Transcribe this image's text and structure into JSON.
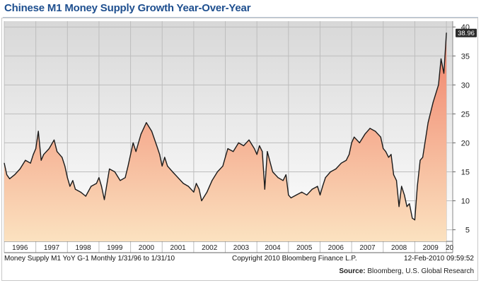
{
  "title": "Chinese M1 Money Supply Growth Year-Over-Year",
  "footer": {
    "series_desc": "Money Supply M1 YoY G-1 Monthly 1/31/96 to 1/31/10",
    "copyright": "Copyright 2010 Bloomberg Finance L.P.",
    "timestamp": "12-Feb-2010 09:59:52"
  },
  "source": {
    "label": "Source:",
    "text": "Bloomberg, U.S. Global Research"
  },
  "colors": {
    "line": "#1a1a1a",
    "fill_top": "#f08068",
    "fill_bottom": "#fbe2c0",
    "plot_top": "#d8d8d8",
    "plot_bottom": "#ffffff",
    "title": "#1e4f8f",
    "grid": "#bdbdbd"
  },
  "chart_data": {
    "type": "area",
    "title": "Chinese M1 Money Supply Growth Year-Over-Year",
    "x_tick_labels": [
      "1996",
      "1997",
      "1998",
      "1999",
      "2000",
      "2001",
      "2002",
      "2003",
      "2004",
      "2005",
      "2006",
      "2007",
      "2008",
      "2009",
      "20"
    ],
    "y_ticks": [
      5,
      10,
      15,
      20,
      25,
      30,
      35,
      40
    ],
    "ylim": [
      3,
      41
    ],
    "xlim": [
      1996.0,
      2010.2
    ],
    "y_axis_side": "right",
    "grid": true,
    "last_value_label": "38.96",
    "series": [
      {
        "values": [
          [
            1996.0,
            16.5
          ],
          [
            1996.08,
            14.5
          ],
          [
            1996.17,
            13.8
          ],
          [
            1996.33,
            14.5
          ],
          [
            1996.5,
            15.5
          ],
          [
            1996.67,
            17.0
          ],
          [
            1996.83,
            16.5
          ],
          [
            1996.92,
            18.0
          ],
          [
            1997.0,
            19.0
          ],
          [
            1997.08,
            22.0
          ],
          [
            1997.17,
            17.0
          ],
          [
            1997.25,
            18.0
          ],
          [
            1997.42,
            19.0
          ],
          [
            1997.58,
            20.5
          ],
          [
            1997.67,
            18.5
          ],
          [
            1997.83,
            17.5
          ],
          [
            1997.92,
            16.0
          ],
          [
            1998.0,
            14.0
          ],
          [
            1998.08,
            12.5
          ],
          [
            1998.17,
            13.5
          ],
          [
            1998.25,
            12.0
          ],
          [
            1998.42,
            11.5
          ],
          [
            1998.58,
            10.8
          ],
          [
            1998.75,
            12.5
          ],
          [
            1998.92,
            13.0
          ],
          [
            1999.0,
            14.0
          ],
          [
            1999.08,
            12.5
          ],
          [
            1999.17,
            10.2
          ],
          [
            1999.33,
            15.5
          ],
          [
            1999.5,
            15.0
          ],
          [
            1999.67,
            13.5
          ],
          [
            1999.83,
            14.0
          ],
          [
            1999.92,
            16.0
          ],
          [
            2000.0,
            18.0
          ],
          [
            2000.08,
            20.0
          ],
          [
            2000.17,
            18.5
          ],
          [
            2000.33,
            21.5
          ],
          [
            2000.5,
            23.5
          ],
          [
            2000.67,
            22.0
          ],
          [
            2000.83,
            19.5
          ],
          [
            2000.92,
            18.0
          ],
          [
            2001.0,
            16.0
          ],
          [
            2001.08,
            17.5
          ],
          [
            2001.17,
            16.0
          ],
          [
            2001.33,
            15.0
          ],
          [
            2001.5,
            14.0
          ],
          [
            2001.67,
            13.0
          ],
          [
            2001.83,
            12.5
          ],
          [
            2002.0,
            11.5
          ],
          [
            2002.08,
            13.0
          ],
          [
            2002.17,
            12.0
          ],
          [
            2002.25,
            10.0
          ],
          [
            2002.42,
            11.5
          ],
          [
            2002.58,
            13.5
          ],
          [
            2002.75,
            15.0
          ],
          [
            2002.92,
            16.0
          ],
          [
            2003.0,
            17.5
          ],
          [
            2003.08,
            19.0
          ],
          [
            2003.25,
            18.5
          ],
          [
            2003.42,
            20.0
          ],
          [
            2003.58,
            19.5
          ],
          [
            2003.75,
            20.5
          ],
          [
            2003.92,
            19.0
          ],
          [
            2004.0,
            18.0
          ],
          [
            2004.08,
            19.5
          ],
          [
            2004.17,
            18.5
          ],
          [
            2004.25,
            12.0
          ],
          [
            2004.33,
            18.5
          ],
          [
            2004.5,
            15.0
          ],
          [
            2004.67,
            14.0
          ],
          [
            2004.83,
            13.5
          ],
          [
            2004.92,
            14.5
          ],
          [
            2005.0,
            11.0
          ],
          [
            2005.08,
            10.5
          ],
          [
            2005.25,
            11.0
          ],
          [
            2005.42,
            11.5
          ],
          [
            2005.58,
            11.0
          ],
          [
            2005.75,
            12.0
          ],
          [
            2005.92,
            12.5
          ],
          [
            2006.0,
            11.0
          ],
          [
            2006.08,
            12.5
          ],
          [
            2006.17,
            14.0
          ],
          [
            2006.33,
            15.0
          ],
          [
            2006.5,
            15.5
          ],
          [
            2006.67,
            16.5
          ],
          [
            2006.83,
            17.0
          ],
          [
            2006.92,
            18.0
          ],
          [
            2007.0,
            20.0
          ],
          [
            2007.08,
            21.0
          ],
          [
            2007.25,
            20.0
          ],
          [
            2007.42,
            21.5
          ],
          [
            2007.58,
            22.5
          ],
          [
            2007.75,
            22.0
          ],
          [
            2007.92,
            21.0
          ],
          [
            2008.0,
            19.0
          ],
          [
            2008.08,
            18.5
          ],
          [
            2008.17,
            17.5
          ],
          [
            2008.25,
            18.0
          ],
          [
            2008.33,
            14.5
          ],
          [
            2008.42,
            13.5
          ],
          [
            2008.5,
            9.0
          ],
          [
            2008.58,
            12.5
          ],
          [
            2008.67,
            11.0
          ],
          [
            2008.75,
            9.0
          ],
          [
            2008.83,
            9.5
          ],
          [
            2008.92,
            7.0
          ],
          [
            2009.0,
            6.7
          ],
          [
            2009.08,
            12.5
          ],
          [
            2009.17,
            17.0
          ],
          [
            2009.25,
            17.5
          ],
          [
            2009.42,
            23.5
          ],
          [
            2009.58,
            27.0
          ],
          [
            2009.75,
            30.0
          ],
          [
            2009.83,
            34.5
          ],
          [
            2009.92,
            32.0
          ],
          [
            2010.0,
            38.96
          ]
        ]
      }
    ]
  }
}
